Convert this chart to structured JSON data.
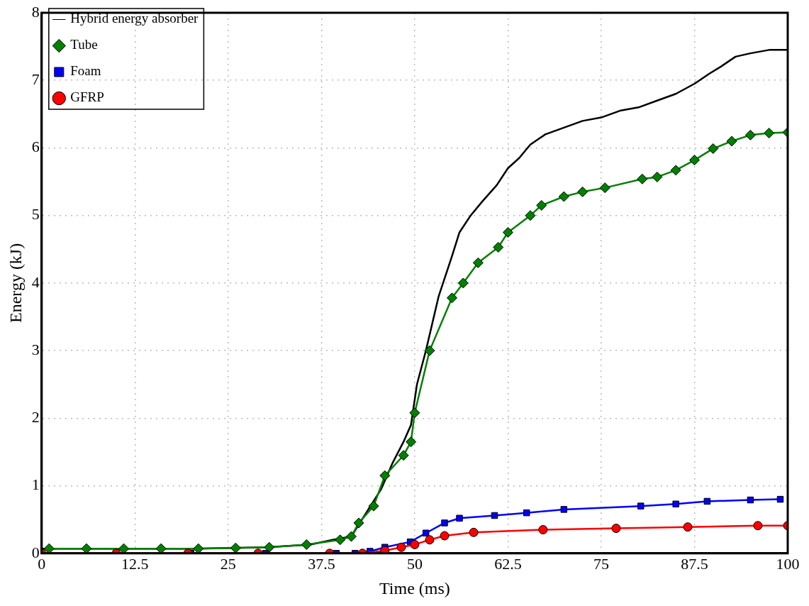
{
  "chart_data": {
    "type": "line",
    "xlabel": "Time (ms)",
    "ylabel": "Energy (kJ)",
    "xlim": [
      0,
      100
    ],
    "xticks": [
      0,
      12.5,
      25,
      37.5,
      50,
      62.5,
      75,
      87.5,
      100
    ],
    "ylim": [
      0,
      8
    ],
    "yticks": [
      0,
      1,
      2,
      3,
      4,
      5,
      6,
      7,
      8
    ],
    "grid": true,
    "legend": "top left",
    "line_style": "solid",
    "series": [
      {
        "name": "Hybrid energy absorber",
        "color": "#000000",
        "marker": "none",
        "x": [
          0,
          10,
          20,
          25,
          30,
          36,
          39,
          41.5,
          43.5,
          45.5,
          47,
          48.5,
          49.5,
          50.3,
          51.5,
          53.2,
          55,
          56,
          57.5,
          59,
          61,
          62.5,
          64,
          65.5,
          67.5,
          70,
          72.5,
          75,
          77.5,
          80,
          82.5,
          85,
          87.5,
          89.5,
          91,
          93,
          95,
          97.5,
          100
        ],
        "values": [
          0.07,
          0.07,
          0.07,
          0.08,
          0.09,
          0.13,
          0.2,
          0.25,
          0.6,
          0.95,
          1.33,
          1.65,
          1.9,
          2.5,
          3.0,
          3.8,
          4.4,
          4.75,
          5.0,
          5.2,
          5.45,
          5.7,
          5.85,
          6.05,
          6.2,
          6.3,
          6.4,
          6.45,
          6.55,
          6.6,
          6.7,
          6.8,
          6.95,
          7.1,
          7.2,
          7.35,
          7.4,
          7.45,
          7.45
        ]
      },
      {
        "name": "Tube",
        "color": "#008000",
        "marker": "diamond",
        "x": [
          1,
          6,
          11,
          16,
          21,
          26,
          30.5,
          35.5,
          40,
          41.5,
          42.5,
          44.5,
          46,
          48.5,
          49.5,
          50,
          52,
          55,
          56.5,
          58.5,
          61.2,
          62.5,
          65.5,
          67,
          70,
          72.5,
          75.5,
          80.5,
          82.5,
          85,
          87.5,
          90,
          92.5,
          95,
          97.5,
          100
        ],
        "values": [
          0.07,
          0.07,
          0.07,
          0.07,
          0.07,
          0.08,
          0.09,
          0.13,
          0.2,
          0.25,
          0.45,
          0.7,
          1.15,
          1.45,
          1.65,
          2.08,
          3.0,
          3.78,
          4.0,
          4.3,
          4.53,
          4.75,
          5.0,
          5.15,
          5.28,
          5.35,
          5.41,
          5.54,
          5.57,
          5.67,
          5.82,
          5.99,
          6.1,
          6.19,
          6.22,
          6.23
        ]
      },
      {
        "name": "Foam",
        "color": "#0000ff",
        "marker": "square",
        "x": [
          0,
          10,
          20,
          30,
          39.5,
          42,
          44,
          46,
          49.4,
          51.5,
          54,
          56,
          60.7,
          65,
          70,
          80.3,
          85,
          89.2,
          95,
          99
        ],
        "values": [
          0,
          0,
          0,
          0,
          0,
          0,
          0.03,
          0.09,
          0.17,
          0.3,
          0.45,
          0.52,
          0.56,
          0.6,
          0.65,
          0.7,
          0.73,
          0.77,
          0.79,
          0.8
        ]
      },
      {
        "name": "GFRP",
        "color": "#ff0000",
        "marker": "circle",
        "x": [
          0,
          10,
          19.6,
          29,
          38.6,
          43,
          46,
          48.2,
          50,
          52,
          54,
          57.9,
          67.2,
          77,
          86.6,
          96,
          100
        ],
        "values": [
          0,
          0,
          0,
          0,
          0,
          0,
          0.04,
          0.09,
          0.13,
          0.2,
          0.26,
          0.31,
          0.35,
          0.37,
          0.39,
          0.41,
          0.41
        ]
      }
    ]
  }
}
